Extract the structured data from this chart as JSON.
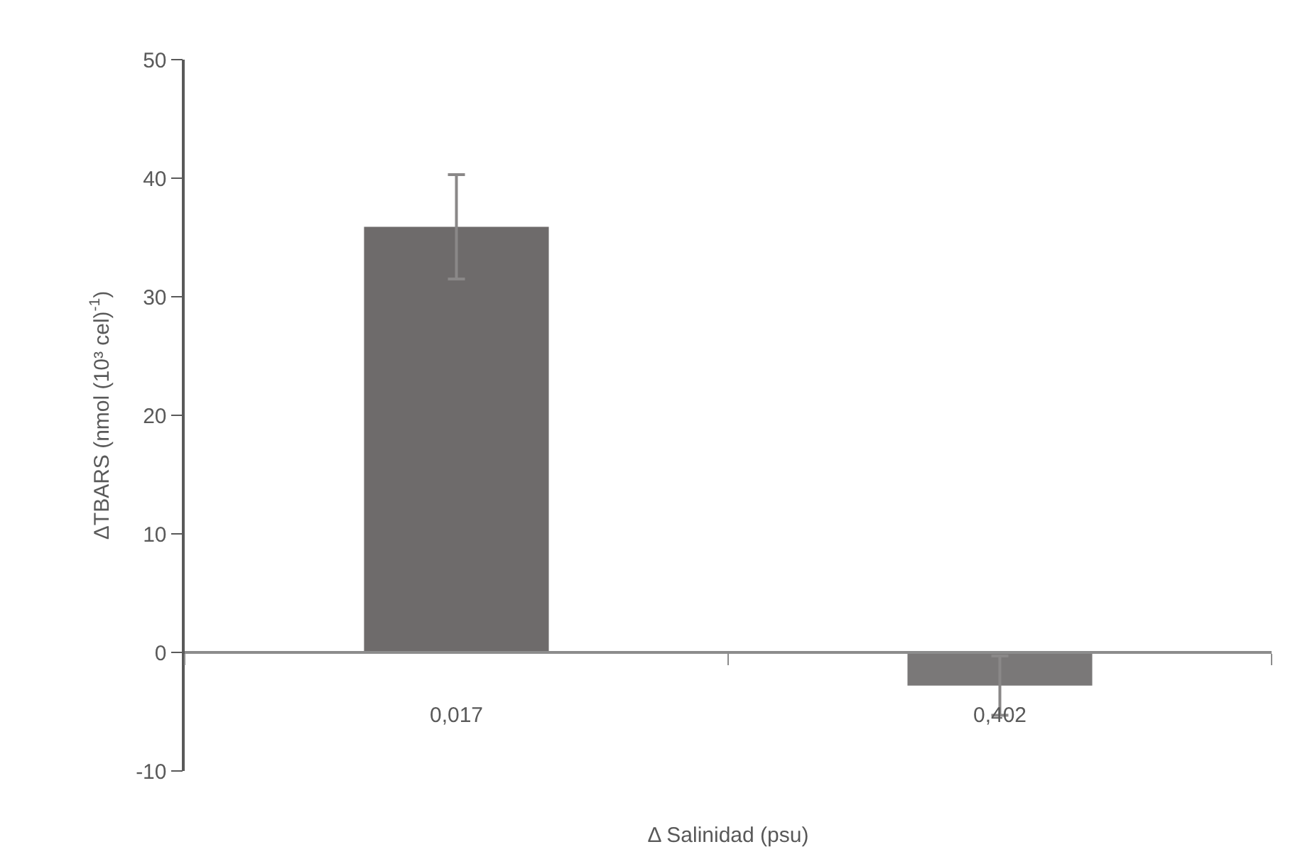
{
  "chart_data": {
    "type": "bar",
    "xlabel": "Δ Salinidad (psu)",
    "ylabel": "ΔTBARS (nmol (10³ cel)$^{-1}$)",
    "categories": [
      "0,017",
      "0,402"
    ],
    "values": [
      35.9,
      -2.8
    ],
    "errors": [
      4.4,
      2.5
    ],
    "colors": [
      "#6e6b6b",
      "#7a7878"
    ],
    "ylim": [
      -10,
      50
    ],
    "yticks": [
      -10,
      0,
      10,
      20,
      30,
      40,
      50
    ],
    "legend": false
  }
}
